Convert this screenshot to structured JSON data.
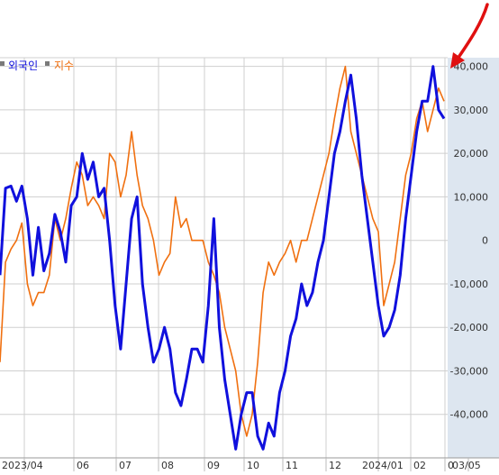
{
  "chart_data": {
    "type": "line",
    "title": "",
    "legend": {
      "placement": "top-left",
      "entries": [
        {
          "label": "외국인",
          "color": "#1010dd"
        },
        {
          "label": "지수",
          "color": "#f07010"
        }
      ]
    },
    "y_axis": {
      "position": "right",
      "range": [
        -50000,
        42000
      ],
      "ticks": [
        40000,
        30000,
        20000,
        10000,
        0,
        -10000,
        -20000,
        -30000,
        -40000
      ],
      "tick_labels": [
        "40,000",
        "30,000",
        "20,000",
        "10,000",
        "0",
        "-10,000",
        "-20,000",
        "-30,000",
        "-40,000"
      ]
    },
    "x_axis": {
      "tick_labels": [
        "2023/04",
        "06",
        "07",
        "08",
        "09",
        "10",
        "11",
        "12",
        "2024/01",
        "02",
        "0",
        "03/05"
      ]
    },
    "grid": true,
    "colors": {
      "foreign": "#1010dd",
      "index": "#f07010",
      "axis_panel": "#dde6f0",
      "grid": "#cfcfcf",
      "arrow": "#e01010"
    },
    "series": [
      {
        "name": "외국인",
        "values": [
          -8000,
          12000,
          12500,
          9000,
          12500,
          5000,
          -8000,
          3000,
          -7000,
          -3000,
          6000,
          2000,
          -5000,
          8000,
          10000,
          20000,
          14000,
          18000,
          10000,
          12000,
          0,
          -15000,
          -25000,
          -10000,
          5000,
          10000,
          -10000,
          -20000,
          -28000,
          -25000,
          -20000,
          -25000,
          -35000,
          -38000,
          -32000,
          -25000,
          -25000,
          -28000,
          -15000,
          5000,
          -20000,
          -32000,
          -40000,
          -48000,
          -40000,
          -35000,
          -35000,
          -45000,
          -48000,
          -42000,
          -45000,
          -35000,
          -30000,
          -22000,
          -18000,
          -10000,
          -15000,
          -12000,
          -5000,
          0,
          10000,
          20000,
          25000,
          32000,
          38000,
          28000,
          15000,
          5000,
          -5000,
          -15000,
          -22000,
          -20000,
          -16000,
          -8000,
          5000,
          15000,
          25000,
          32000,
          32000,
          40000,
          30000,
          28000
        ]
      },
      {
        "name": "지수",
        "values": [
          -28000,
          -5000,
          -2000,
          0,
          4000,
          -10000,
          -15000,
          -12000,
          -12000,
          -8000,
          5000,
          0,
          5000,
          12000,
          18000,
          15000,
          8000,
          10000,
          8000,
          5000,
          20000,
          18000,
          10000,
          15000,
          25000,
          15000,
          8000,
          5000,
          0,
          -8000,
          -5000,
          -3000,
          10000,
          3000,
          5000,
          0,
          0,
          0,
          -5000,
          -8000,
          -12000,
          -20000,
          -25000,
          -30000,
          -40000,
          -45000,
          -40000,
          -28000,
          -12000,
          -5000,
          -8000,
          -5000,
          -3000,
          0,
          -5000,
          0,
          0,
          5000,
          10000,
          15000,
          20000,
          28000,
          35000,
          40000,
          25000,
          20000,
          15000,
          10000,
          5000,
          2000,
          -15000,
          -10000,
          -5000,
          5000,
          15000,
          20000,
          28000,
          32000,
          25000,
          30000,
          35000,
          32000
        ]
      }
    ]
  },
  "annotation": {
    "type": "arrow",
    "color": "#e01010",
    "pointing": "latest value near 40,000"
  }
}
